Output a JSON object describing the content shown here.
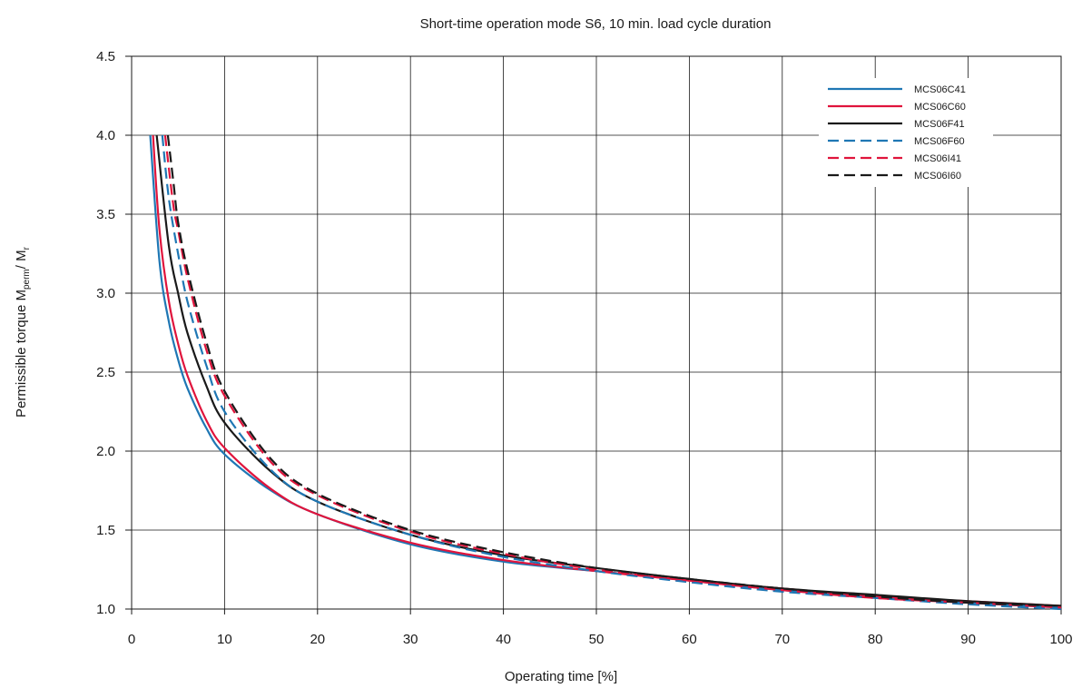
{
  "chart_data": {
    "type": "line",
    "title": "Short-time operation mode S6, 10 min. load cycle duration",
    "xlabel": "Operating time [%]",
    "ylabel_main": "Permissible torque M",
    "ylabel_sub1": "perm",
    "ylabel_mid": "/ M",
    "ylabel_sub2": "r",
    "xlim": [
      0,
      100
    ],
    "ylim": [
      1.0,
      4.5
    ],
    "grid": true,
    "legend_position": "top-right",
    "x_ticks": [
      "0",
      "10",
      "20",
      "30",
      "40",
      "50",
      "60",
      "70",
      "80",
      "90",
      "100"
    ],
    "y_ticks": [
      "1.0",
      "1.5",
      "2.0",
      "2.5",
      "3.0",
      "3.5",
      "4.0",
      "4.5"
    ],
    "series": [
      {
        "name": "MCS06C41",
        "color": "#1f77b4",
        "dash": "solid",
        "x": [
          2,
          3,
          4,
          5,
          6,
          8,
          10,
          15,
          20,
          30,
          40,
          50,
          60,
          70,
          80,
          90,
          100
        ],
        "y": [
          4.0,
          3.2,
          2.82,
          2.58,
          2.4,
          2.15,
          1.98,
          1.75,
          1.6,
          1.41,
          1.3,
          1.24,
          1.18,
          1.12,
          1.08,
          1.04,
          1.01
        ]
      },
      {
        "name": "MCS06C60",
        "color": "#e0143c",
        "dash": "solid",
        "x": [
          2.3,
          3,
          4,
          5,
          6,
          8,
          10,
          15,
          20,
          30,
          40,
          50,
          60,
          70,
          80,
          90,
          100
        ],
        "y": [
          4.0,
          3.4,
          2.95,
          2.68,
          2.48,
          2.2,
          2.02,
          1.76,
          1.6,
          1.42,
          1.31,
          1.24,
          1.18,
          1.13,
          1.08,
          1.05,
          1.02
        ]
      },
      {
        "name": "MCS06F41",
        "color": "#1a1a1a",
        "dash": "solid",
        "x": [
          2.7,
          4,
          5,
          6,
          8,
          10,
          15,
          20,
          30,
          40,
          50,
          60,
          70,
          80,
          90,
          100
        ],
        "y": [
          4.0,
          3.3,
          3.0,
          2.75,
          2.42,
          2.18,
          1.87,
          1.68,
          1.47,
          1.34,
          1.26,
          1.19,
          1.13,
          1.09,
          1.05,
          1.02
        ]
      },
      {
        "name": "MCS06F60",
        "color": "#1f77b4",
        "dash": "dashed",
        "x": [
          3.3,
          4,
          5,
          6,
          8,
          10,
          15,
          20,
          30,
          40,
          50,
          60,
          70,
          80,
          90,
          100
        ],
        "y": [
          4.0,
          3.6,
          3.25,
          2.95,
          2.55,
          2.25,
          1.88,
          1.68,
          1.47,
          1.33,
          1.24,
          1.17,
          1.11,
          1.07,
          1.03,
          1.0
        ]
      },
      {
        "name": "MCS06I41",
        "color": "#e0143c",
        "dash": "dashed",
        "x": [
          3.6,
          4.5,
          5,
          6,
          8,
          10,
          15,
          20,
          30,
          40,
          50,
          60,
          70,
          80,
          90,
          100
        ],
        "y": [
          4.0,
          3.55,
          3.4,
          3.1,
          2.65,
          2.35,
          1.93,
          1.72,
          1.49,
          1.35,
          1.25,
          1.18,
          1.12,
          1.07,
          1.04,
          1.01
        ]
      },
      {
        "name": "MCS06I60",
        "color": "#1a1a1a",
        "dash": "dashed",
        "x": [
          3.9,
          4.5,
          5,
          6,
          8,
          10,
          15,
          20,
          30,
          40,
          50,
          60,
          70,
          80,
          90,
          100
        ],
        "y": [
          4.0,
          3.7,
          3.45,
          3.15,
          2.7,
          2.38,
          1.95,
          1.73,
          1.5,
          1.36,
          1.26,
          1.19,
          1.13,
          1.08,
          1.04,
          1.02
        ]
      }
    ]
  }
}
